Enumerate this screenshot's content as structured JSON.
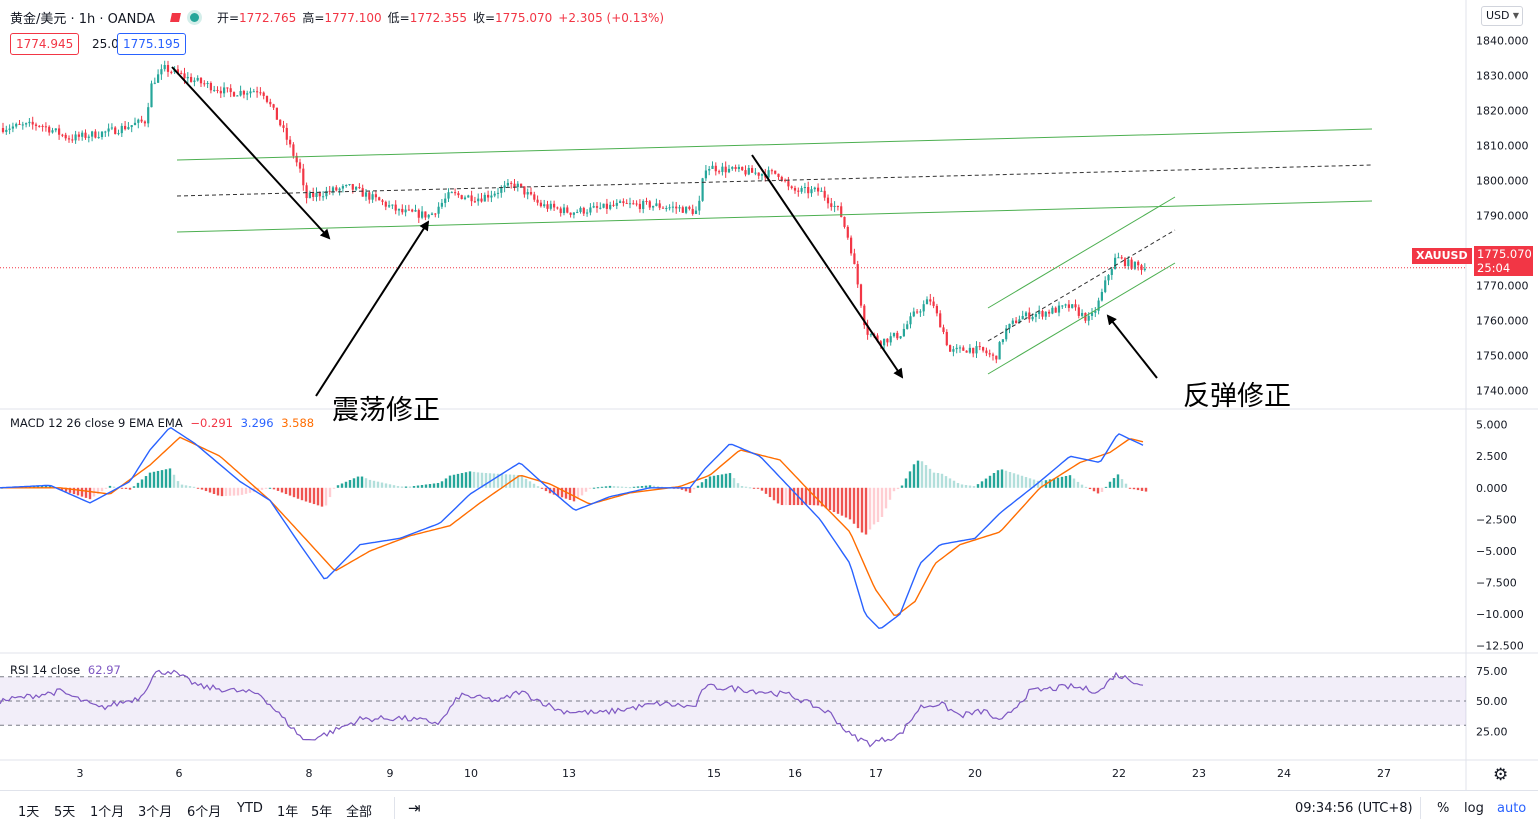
{
  "header": {
    "symbol": "黄金/美元 · 1h · OANDA",
    "ohlc": [
      {
        "k": "开=",
        "v": "1772.765"
      },
      {
        "k": "高=",
        "v": "1777.100"
      },
      {
        "k": "低=",
        "v": "1772.355"
      },
      {
        "k": "收=",
        "v": "1775.070"
      },
      {
        "k": "",
        "v": "+2.305 (+0.13%)"
      }
    ],
    "bid": "1774.945",
    "spread": "25.0",
    "ask": "1775.195",
    "currency": "USD"
  },
  "price_tag": {
    "symbol": "XAUUSD",
    "price": "1775.070",
    "countdown": "25:04"
  },
  "annotations": {
    "left": "震荡修正",
    "right": "反弹修正"
  },
  "macd_label": {
    "name": "MACD 12 26 close 9 EMA EMA",
    "hist": "−0.291",
    "macd": "3.296",
    "signal": "3.588"
  },
  "rsi_label": {
    "name": "RSI 14 close",
    "value": "62.97"
  },
  "bottom": {
    "timeframes": [
      "1天",
      "5天",
      "1个月",
      "3个月",
      "6个月",
      "YTD",
      "1年",
      "5年",
      "全部"
    ],
    "clock": "09:34:56 (UTC+8)",
    "pct": "%",
    "log": "log",
    "auto": "auto"
  },
  "colors": {
    "up": "#26a69a",
    "down": "#f23645",
    "macd": "#2962ff",
    "signal": "#ff6d00",
    "rsi": "#7e57c2",
    "channel": "#4caf50"
  },
  "chart_data": [
    {
      "type": "candlestick",
      "title": "黄金/美元 · 1h · OANDA",
      "x_ticks": [
        "3",
        "6",
        "8",
        "9",
        "10",
        "13",
        "15",
        "16",
        "17",
        "20",
        "22",
        "23",
        "24",
        "27"
      ],
      "y_ticks": [
        "1840.000",
        "1830.000",
        "1820.000",
        "1810.000",
        "1800.000",
        "1790.000",
        "1780.000",
        "1770.000",
        "1760.000",
        "1750.000",
        "1740.000"
      ],
      "ylim": [
        1735,
        1843
      ],
      "last_price": 1775.07,
      "path": [
        [
          0,
          1815
        ],
        [
          40,
          1816
        ],
        [
          70,
          1812
        ],
        [
          110,
          1814
        ],
        [
          145,
          1817
        ],
        [
          152,
          1828
        ],
        [
          165,
          1832
        ],
        [
          190,
          1829
        ],
        [
          230,
          1825
        ],
        [
          262,
          1826
        ],
        [
          282,
          1815
        ],
        [
          300,
          1803
        ],
        [
          305,
          1795
        ],
        [
          330,
          1797
        ],
        [
          350,
          1798
        ],
        [
          380,
          1794
        ],
        [
          400,
          1791
        ],
        [
          430,
          1790
        ],
        [
          450,
          1796
        ],
        [
          480,
          1795
        ],
        [
          515,
          1799
        ],
        [
          540,
          1793
        ],
        [
          570,
          1791
        ],
        [
          600,
          1792
        ],
        [
          620,
          1793
        ],
        [
          650,
          1793
        ],
        [
          680,
          1792
        ],
        [
          698,
          1791
        ],
        [
          705,
          1804
        ],
        [
          730,
          1803
        ],
        [
          760,
          1802
        ],
        [
          780,
          1802
        ],
        [
          790,
          1797
        ],
        [
          820,
          1797
        ],
        [
          840,
          1791
        ],
        [
          850,
          1782
        ],
        [
          858,
          1770
        ],
        [
          866,
          1757
        ],
        [
          880,
          1754
        ],
        [
          900,
          1756
        ],
        [
          915,
          1762
        ],
        [
          930,
          1766
        ],
        [
          942,
          1758
        ],
        [
          950,
          1751
        ],
        [
          970,
          1752
        ],
        [
          985,
          1751
        ],
        [
          995,
          1749
        ],
        [
          1005,
          1757
        ],
        [
          1020,
          1761
        ],
        [
          1040,
          1762
        ],
        [
          1070,
          1764
        ],
        [
          1090,
          1760
        ],
        [
          1100,
          1766
        ],
        [
          1108,
          1773
        ],
        [
          1116,
          1778
        ],
        [
          1130,
          1776
        ],
        [
          1145,
          1775
        ]
      ]
    },
    {
      "type": "line",
      "title": "MACD 12 26 close 9 EMA EMA",
      "y_ticks": [
        "5.000",
        "2.500",
        "0.000",
        "−2.500",
        "−5.000",
        "−7.500",
        "−10.000",
        "−12.500"
      ],
      "ylim": [
        -13,
        6
      ],
      "series": [
        {
          "name": "MACD",
          "points": [
            [
              0,
              0
            ],
            [
              50,
              0.2
            ],
            [
              90,
              -1.2
            ],
            [
              130,
              0.5
            ],
            [
              150,
              3
            ],
            [
              170,
              4.8
            ],
            [
              195,
              3.5
            ],
            [
              240,
              0.5
            ],
            [
              270,
              -1
            ],
            [
              300,
              -4.5
            ],
            [
              325,
              -7.3
            ],
            [
              360,
              -4.5
            ],
            [
              400,
              -4
            ],
            [
              440,
              -2.8
            ],
            [
              470,
              -0.5
            ],
            [
              500,
              1
            ],
            [
              520,
              2
            ],
            [
              545,
              0.2
            ],
            [
              575,
              -1.8
            ],
            [
              610,
              -0.7
            ],
            [
              650,
              0
            ],
            [
              690,
              0
            ],
            [
              705,
              1.5
            ],
            [
              730,
              3.5
            ],
            [
              760,
              2.5
            ],
            [
              790,
              0
            ],
            [
              820,
              -2.5
            ],
            [
              850,
              -6
            ],
            [
              865,
              -10
            ],
            [
              880,
              -11.2
            ],
            [
              900,
              -10
            ],
            [
              920,
              -6
            ],
            [
              940,
              -4.5
            ],
            [
              975,
              -4
            ],
            [
              1000,
              -2
            ],
            [
              1040,
              0.5
            ],
            [
              1070,
              2.5
            ],
            [
              1100,
              2
            ],
            [
              1118,
              4.3
            ],
            [
              1145,
              3.3
            ]
          ]
        },
        {
          "name": "Signal",
          "points": [
            [
              0,
              0
            ],
            [
              60,
              0
            ],
            [
              110,
              -0.5
            ],
            [
              150,
              1.8
            ],
            [
              180,
              4
            ],
            [
              220,
              2.5
            ],
            [
              270,
              -1
            ],
            [
              305,
              -4
            ],
            [
              335,
              -6.6
            ],
            [
              370,
              -5
            ],
            [
              410,
              -3.8
            ],
            [
              450,
              -3
            ],
            [
              480,
              -1.2
            ],
            [
              520,
              1
            ],
            [
              550,
              0.3
            ],
            [
              590,
              -1.3
            ],
            [
              630,
              -0.4
            ],
            [
              680,
              0.1
            ],
            [
              710,
              1
            ],
            [
              740,
              3
            ],
            [
              780,
              2.2
            ],
            [
              810,
              -0.3
            ],
            [
              850,
              -3.5
            ],
            [
              875,
              -8
            ],
            [
              895,
              -10.2
            ],
            [
              915,
              -9
            ],
            [
              935,
              -6
            ],
            [
              960,
              -4.5
            ],
            [
              1000,
              -3.5
            ],
            [
              1040,
              0
            ],
            [
              1080,
              2
            ],
            [
              1110,
              2.8
            ],
            [
              1130,
              3.9
            ],
            [
              1145,
              3.6
            ]
          ]
        }
      ]
    },
    {
      "type": "line",
      "title": "RSI 14 close",
      "y_ticks": [
        "75.00",
        "50.00",
        "25.00"
      ],
      "ylim": [
        3,
        88
      ],
      "band": [
        30,
        70
      ],
      "series": [
        {
          "name": "RSI",
          "points": [
            [
              0,
              50
            ],
            [
              60,
              58
            ],
            [
              100,
              44
            ],
            [
              140,
              53
            ],
            [
              155,
              73
            ],
            [
              170,
              75
            ],
            [
              200,
              62
            ],
            [
              260,
              56
            ],
            [
              285,
              34
            ],
            [
              305,
              17
            ],
            [
              330,
              24
            ],
            [
              360,
              35
            ],
            [
              400,
              36
            ],
            [
              440,
              32
            ],
            [
              460,
              55
            ],
            [
              500,
              50
            ],
            [
              520,
              58
            ],
            [
              560,
              42
            ],
            [
              600,
              40
            ],
            [
              660,
              48
            ],
            [
              695,
              45
            ],
            [
              705,
              62
            ],
            [
              740,
              60
            ],
            [
              790,
              55
            ],
            [
              830,
              40
            ],
            [
              850,
              22
            ],
            [
              870,
              15
            ],
            [
              900,
              22
            ],
            [
              920,
              45
            ],
            [
              940,
              48
            ],
            [
              960,
              38
            ],
            [
              985,
              42
            ],
            [
              1000,
              32
            ],
            [
              1030,
              58
            ],
            [
              1070,
              62
            ],
            [
              1100,
              58
            ],
            [
              1115,
              72
            ],
            [
              1130,
              68
            ],
            [
              1145,
              63
            ]
          ]
        }
      ]
    }
  ]
}
